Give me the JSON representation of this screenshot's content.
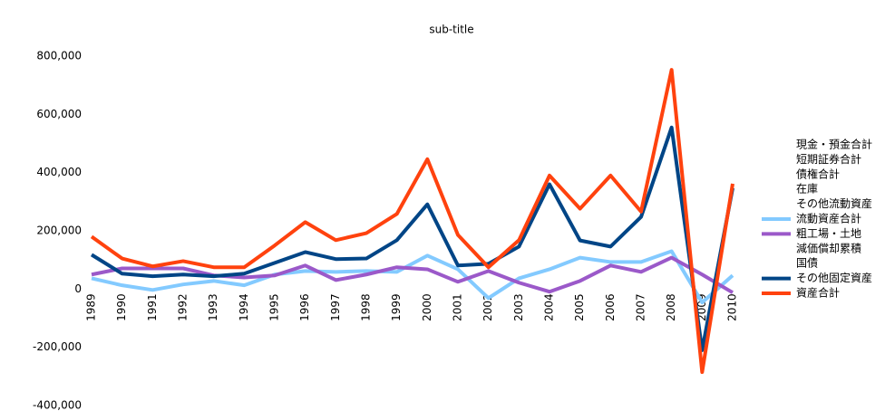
{
  "chart_data": {
    "type": "line",
    "title": "sub-title",
    "categories": [
      "1989",
      "1990",
      "1991",
      "1992",
      "1993",
      "1994",
      "1995",
      "1996",
      "1997",
      "1998",
      "1999",
      "2000",
      "2001",
      "2002",
      "2003",
      "2004",
      "2005",
      "2006",
      "2007",
      "2008",
      "2009",
      "2010"
    ],
    "ylim": [
      -400000,
      800000
    ],
    "yticks": [
      {
        "value": -400000,
        "label": "-400,000"
      },
      {
        "value": -200000,
        "label": "-200,000"
      },
      0,
      {
        "value": 200000,
        "label": "200,000"
      },
      {
        "value": 400000,
        "label": "400,000"
      },
      {
        "value": 600000,
        "label": "600,000"
      },
      {
        "value": 800000,
        "label": "800,000"
      }
    ],
    "grid": false,
    "legend": "right",
    "series": [
      {
        "name": "現金・預金合計",
        "color": null,
        "values": [
          null,
          null,
          null,
          null,
          null,
          null,
          null,
          null,
          null,
          null,
          null,
          null,
          null,
          null,
          null,
          null,
          null,
          null,
          null,
          null,
          null,
          null
        ]
      },
      {
        "name": "短期証券合計",
        "color": null,
        "values": [
          null,
          null,
          null,
          null,
          null,
          null,
          null,
          null,
          null,
          null,
          null,
          null,
          null,
          null,
          null,
          null,
          null,
          null,
          null,
          null,
          null,
          null
        ]
      },
      {
        "name": "債権合計",
        "color": null,
        "values": [
          null,
          null,
          null,
          null,
          null,
          null,
          null,
          null,
          null,
          null,
          null,
          null,
          null,
          null,
          null,
          null,
          null,
          null,
          null,
          null,
          null,
          null
        ]
      },
      {
        "name": "在庫",
        "color": null,
        "values": [
          null,
          null,
          null,
          null,
          null,
          null,
          null,
          null,
          null,
          null,
          null,
          null,
          null,
          null,
          null,
          null,
          null,
          null,
          null,
          null,
          null,
          null
        ]
      },
      {
        "name": "その他流動資産",
        "color": null,
        "values": [
          null,
          null,
          null,
          null,
          null,
          null,
          null,
          null,
          null,
          null,
          null,
          null,
          null,
          null,
          null,
          null,
          null,
          null,
          null,
          null,
          null,
          null
        ]
      },
      {
        "name": "流動資産合計",
        "color": "#83caff",
        "values": [
          37000,
          13000,
          -3000,
          16000,
          28000,
          13000,
          50000,
          62000,
          59000,
          62000,
          59000,
          115000,
          68000,
          -31000,
          37000,
          68000,
          108000,
          93000,
          93000,
          130000,
          -46000,
          47000
        ]
      },
      {
        "name": "粗工場・土地",
        "color": "#9b59c9",
        "values": [
          50000,
          71000,
          71000,
          71000,
          47000,
          40000,
          47000,
          81000,
          31000,
          50000,
          75000,
          68000,
          25000,
          62000,
          22000,
          -9000,
          28000,
          81000,
          59000,
          108000,
          50000,
          -12000
        ]
      },
      {
        "name": "減価償却累積",
        "color": null,
        "values": [
          null,
          null,
          null,
          null,
          null,
          null,
          null,
          null,
          null,
          null,
          null,
          null,
          null,
          null,
          null,
          null,
          null,
          null,
          null,
          null,
          null,
          null
        ]
      },
      {
        "name": "国債",
        "color": null,
        "values": [
          null,
          null,
          null,
          null,
          null,
          null,
          null,
          null,
          null,
          null,
          null,
          null,
          null,
          null,
          null,
          null,
          null,
          null,
          null,
          null,
          null,
          null
        ]
      },
      {
        "name": "その他固定資産",
        "color": "#004586",
        "values": [
          118000,
          53000,
          44000,
          50000,
          44000,
          53000,
          90000,
          127000,
          103000,
          105000,
          168000,
          291000,
          81000,
          87000,
          146000,
          360000,
          167000,
          146000,
          248000,
          555000,
          -210000,
          347000
        ]
      },
      {
        "name": "資産合計",
        "color": "#ff420e",
        "values": [
          180000,
          105000,
          78000,
          96000,
          75000,
          75000,
          150000,
          230000,
          168000,
          192000,
          258000,
          446000,
          186000,
          75000,
          168000,
          390000,
          276000,
          390000,
          266000,
          753000,
          -285000,
          362000
        ]
      }
    ]
  }
}
